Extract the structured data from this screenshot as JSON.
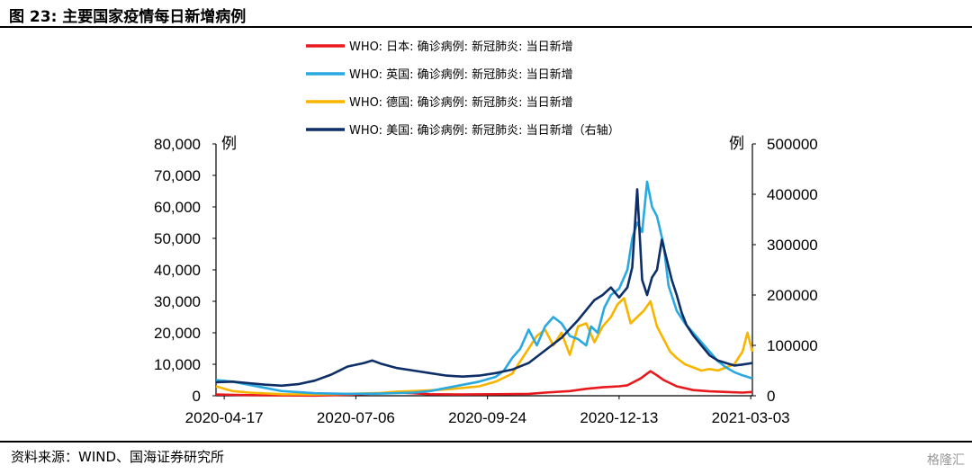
{
  "header": {
    "title": "图 23:  主要国家疫情每日新增病例"
  },
  "footer": {
    "source": "资料来源：WIND、国海证券研究所",
    "watermark": "格隆汇"
  },
  "colors": {
    "japan": "#e8191d",
    "uk": "#2aa9e0",
    "germany": "#f7b500",
    "usa": "#0d2e66"
  },
  "chart_data": {
    "type": "line",
    "title": "主要国家疫情每日新增病例",
    "x_tick_labels": [
      "2020-04-17",
      "2020-07-06",
      "2020-09-24",
      "2020-12-13",
      "2021-03-03"
    ],
    "x_range": [
      "2020-04-12",
      "2021-03-05"
    ],
    "y_left": {
      "unit": "例",
      "range": [
        0,
        80000
      ],
      "tick_labels": [
        "0",
        "10,000",
        "20,000",
        "30,000",
        "40,000",
        "50,000",
        "60,000",
        "70,000",
        "80,000"
      ]
    },
    "y_right": {
      "unit": "例",
      "range": [
        0,
        500000
      ],
      "tick_labels": [
        "0",
        "100000",
        "200000",
        "300000",
        "400000",
        "500000"
      ]
    },
    "series": [
      {
        "key": "japan",
        "name": "WHO: 日本: 确诊病例: 新冠肺炎: 当日新增",
        "axis": "left",
        "points": [
          [
            0,
            400
          ],
          [
            20,
            200
          ],
          [
            40,
            100
          ],
          [
            60,
            50
          ],
          [
            80,
            300
          ],
          [
            95,
            700
          ],
          [
            110,
            1000
          ],
          [
            120,
            800
          ],
          [
            130,
            500
          ],
          [
            150,
            400
          ],
          [
            170,
            500
          ],
          [
            190,
            600
          ],
          [
            200,
            1000
          ],
          [
            215,
            1500
          ],
          [
            225,
            2200
          ],
          [
            235,
            2700
          ],
          [
            245,
            3000
          ],
          [
            250,
            3300
          ],
          [
            258,
            5500
          ],
          [
            264,
            7800
          ],
          [
            268,
            6500
          ],
          [
            272,
            5000
          ],
          [
            280,
            3000
          ],
          [
            290,
            1800
          ],
          [
            300,
            1400
          ],
          [
            310,
            1200
          ],
          [
            320,
            1000
          ],
          [
            326,
            1200
          ]
        ]
      },
      {
        "key": "uk",
        "name": "WHO: 英国: 确诊病例: 新冠肺炎: 当日新增",
        "axis": "left",
        "points": [
          [
            0,
            5000
          ],
          [
            10,
            4500
          ],
          [
            20,
            3500
          ],
          [
            30,
            2500
          ],
          [
            40,
            1500
          ],
          [
            60,
            800
          ],
          [
            80,
            600
          ],
          [
            100,
            700
          ],
          [
            120,
            1000
          ],
          [
            130,
            1500
          ],
          [
            140,
            2500
          ],
          [
            150,
            3500
          ],
          [
            160,
            4500
          ],
          [
            170,
            6000
          ],
          [
            175,
            8000
          ],
          [
            180,
            12000
          ],
          [
            185,
            15000
          ],
          [
            190,
            21000
          ],
          [
            195,
            16000
          ],
          [
            200,
            22000
          ],
          [
            205,
            25000
          ],
          [
            210,
            23000
          ],
          [
            215,
            19000
          ],
          [
            220,
            18000
          ],
          [
            225,
            16000
          ],
          [
            228,
            22000
          ],
          [
            232,
            20000
          ],
          [
            236,
            28000
          ],
          [
            240,
            32000
          ],
          [
            245,
            34000
          ],
          [
            250,
            40000
          ],
          [
            253,
            50000
          ],
          [
            256,
            55000
          ],
          [
            259,
            52000
          ],
          [
            262,
            68000
          ],
          [
            265,
            60000
          ],
          [
            268,
            57000
          ],
          [
            272,
            48000
          ],
          [
            275,
            35000
          ],
          [
            280,
            27000
          ],
          [
            285,
            23000
          ],
          [
            290,
            20000
          ],
          [
            295,
            17000
          ],
          [
            300,
            14000
          ],
          [
            305,
            11000
          ],
          [
            310,
            9000
          ],
          [
            315,
            7500
          ],
          [
            320,
            6500
          ],
          [
            326,
            5500
          ]
        ]
      },
      {
        "key": "germany",
        "name": "WHO: 德国: 确诊病例: 新冠肺炎: 当日新增",
        "axis": "left",
        "points": [
          [
            0,
            3000
          ],
          [
            10,
            1500
          ],
          [
            20,
            1000
          ],
          [
            40,
            500
          ],
          [
            60,
            400
          ],
          [
            80,
            600
          ],
          [
            100,
            900
          ],
          [
            110,
            1300
          ],
          [
            120,
            1500
          ],
          [
            140,
            2000
          ],
          [
            150,
            2500
          ],
          [
            160,
            3000
          ],
          [
            170,
            4500
          ],
          [
            180,
            7000
          ],
          [
            185,
            11000
          ],
          [
            190,
            15000
          ],
          [
            195,
            19000
          ],
          [
            200,
            21000
          ],
          [
            205,
            16000
          ],
          [
            210,
            20000
          ],
          [
            215,
            13000
          ],
          [
            220,
            22000
          ],
          [
            225,
            23000
          ],
          [
            230,
            17000
          ],
          [
            235,
            22000
          ],
          [
            240,
            25000
          ],
          [
            244,
            29000
          ],
          [
            248,
            31000
          ],
          [
            252,
            23000
          ],
          [
            256,
            25000
          ],
          [
            260,
            27000
          ],
          [
            264,
            30000
          ],
          [
            268,
            22000
          ],
          [
            272,
            18000
          ],
          [
            276,
            14000
          ],
          [
            280,
            12000
          ],
          [
            285,
            10000
          ],
          [
            290,
            9000
          ],
          [
            295,
            8000
          ],
          [
            300,
            8500
          ],
          [
            305,
            8000
          ],
          [
            310,
            9000
          ],
          [
            315,
            10000
          ],
          [
            320,
            14000
          ],
          [
            323,
            20000
          ],
          [
            326,
            14000
          ]
        ]
      },
      {
        "key": "usa",
        "name": "WHO: 美国: 确诊病例: 新冠肺炎: 当日新增（右轴）",
        "axis": "right",
        "points": [
          [
            0,
            27000
          ],
          [
            10,
            28000
          ],
          [
            20,
            25000
          ],
          [
            30,
            22000
          ],
          [
            40,
            20000
          ],
          [
            50,
            23000
          ],
          [
            60,
            30000
          ],
          [
            70,
            42000
          ],
          [
            80,
            58000
          ],
          [
            90,
            65000
          ],
          [
            95,
            70000
          ],
          [
            100,
            64000
          ],
          [
            110,
            55000
          ],
          [
            120,
            50000
          ],
          [
            130,
            45000
          ],
          [
            140,
            40000
          ],
          [
            150,
            38000
          ],
          [
            160,
            40000
          ],
          [
            170,
            45000
          ],
          [
            180,
            52000
          ],
          [
            190,
            65000
          ],
          [
            200,
            90000
          ],
          [
            210,
            115000
          ],
          [
            220,
            150000
          ],
          [
            225,
            170000
          ],
          [
            230,
            190000
          ],
          [
            235,
            200000
          ],
          [
            240,
            215000
          ],
          [
            245,
            195000
          ],
          [
            250,
            215000
          ],
          [
            253,
            255000
          ],
          [
            256,
            410000
          ],
          [
            259,
            230000
          ],
          [
            262,
            200000
          ],
          [
            265,
            235000
          ],
          [
            268,
            250000
          ],
          [
            271,
            310000
          ],
          [
            274,
            270000
          ],
          [
            277,
            230000
          ],
          [
            280,
            200000
          ],
          [
            283,
            165000
          ],
          [
            286,
            140000
          ],
          [
            290,
            120000
          ],
          [
            295,
            100000
          ],
          [
            300,
            80000
          ],
          [
            305,
            70000
          ],
          [
            310,
            65000
          ],
          [
            315,
            60000
          ],
          [
            320,
            62000
          ],
          [
            326,
            65000
          ]
        ]
      }
    ]
  }
}
